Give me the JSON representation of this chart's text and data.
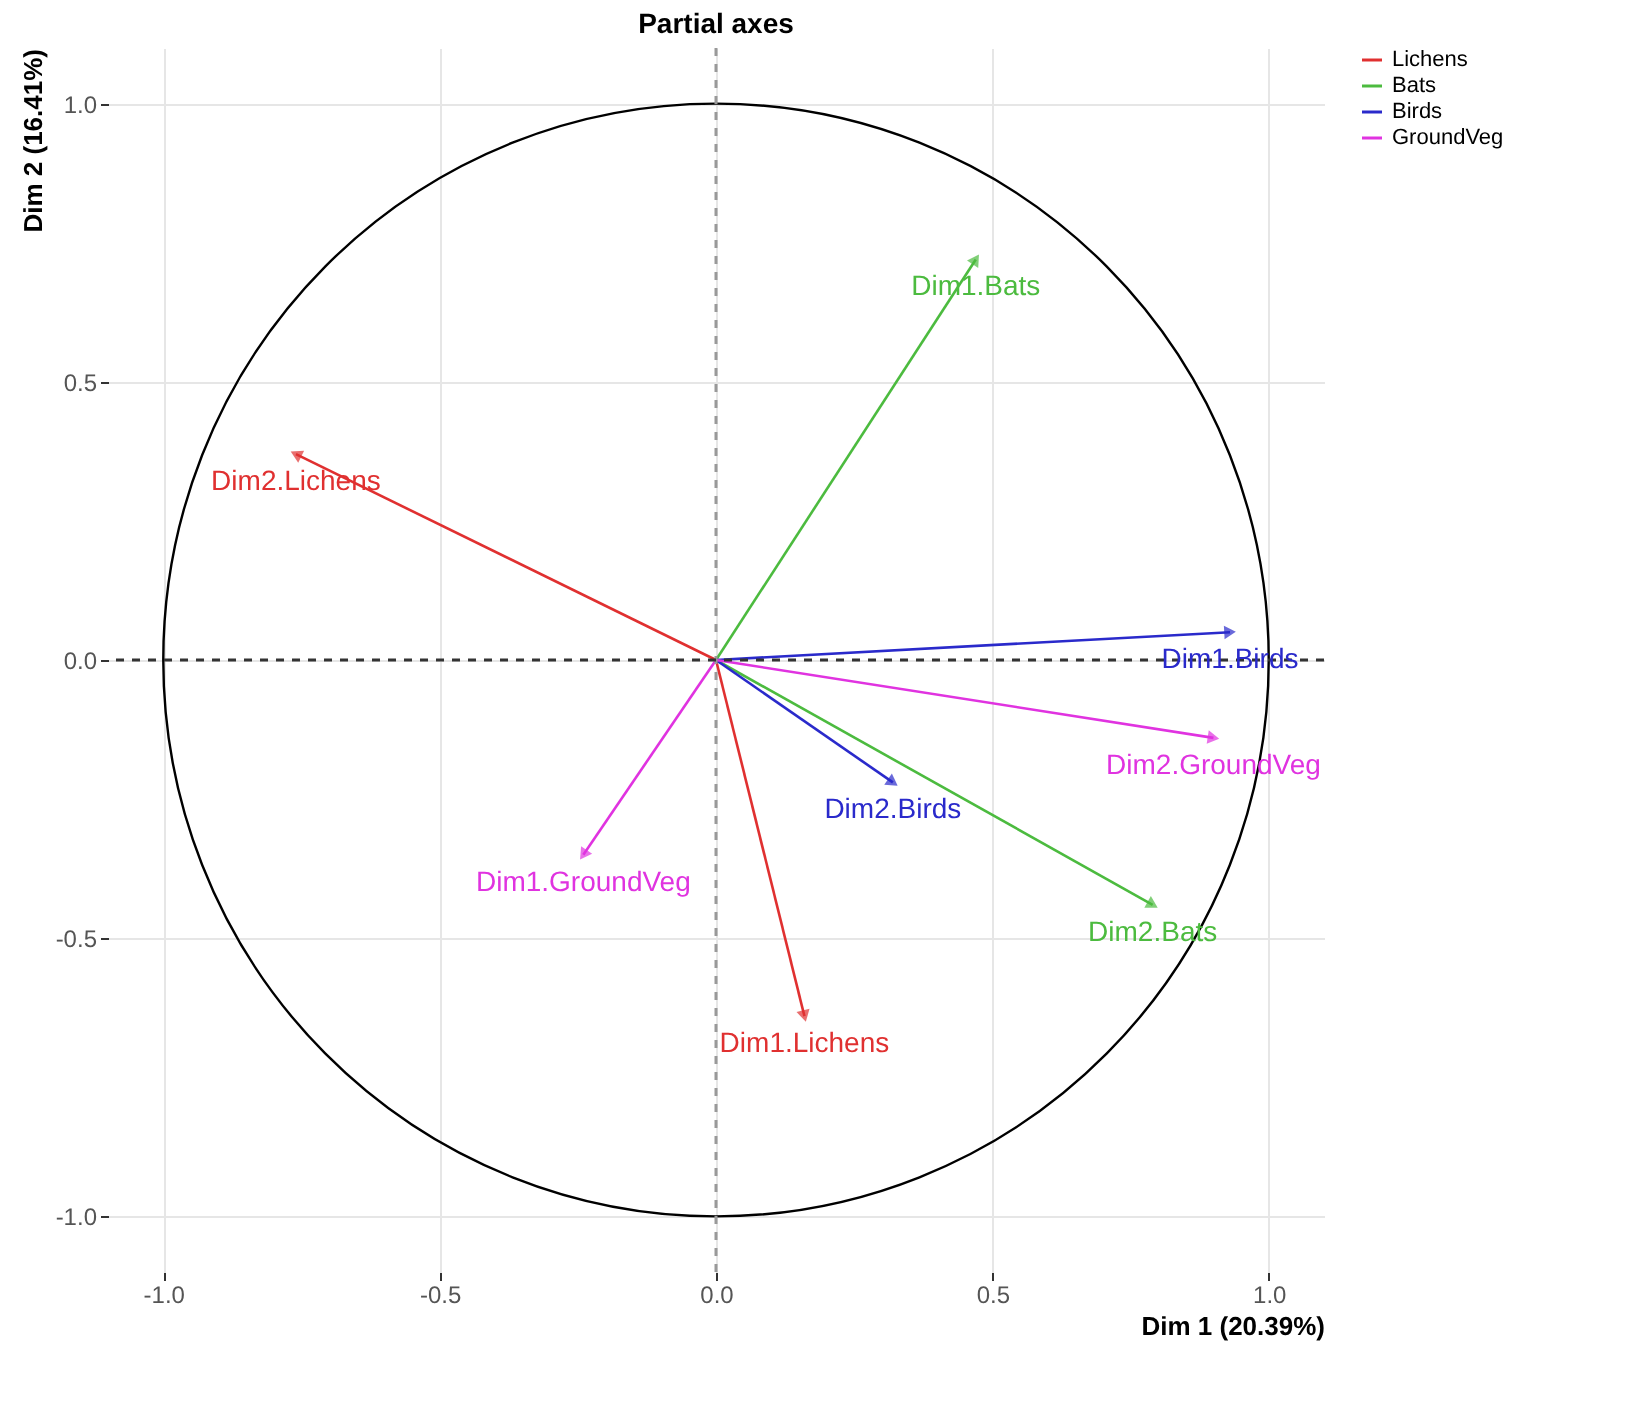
{
  "chart_data": {
    "type": "line",
    "title": "Partial axes",
    "xlabel": "Dim 1 (20.39%)",
    "ylabel": "Dim 2 (16.41%)",
    "xlim": [
      -1.1,
      1.1
    ],
    "ylim": [
      -1.1,
      1.1
    ],
    "xticks": [
      {
        "value": -1,
        "label": "-1.0"
      },
      {
        "value": -0.5,
        "label": "-0.5"
      },
      {
        "value": 0,
        "label": "0.0"
      },
      {
        "value": 0.5,
        "label": "0.5"
      },
      {
        "value": 1,
        "label": "1.0"
      }
    ],
    "yticks": [
      {
        "value": -1,
        "label": "-1.0"
      },
      {
        "value": -0.5,
        "label": "-0.5"
      },
      {
        "value": 0,
        "label": "0.0"
      },
      {
        "value": 0.5,
        "label": "0.5"
      },
      {
        "value": 1,
        "label": "1.0"
      }
    ],
    "grid": true,
    "legend": "right",
    "ref_lines": [
      {
        "axis": "x",
        "value": 0,
        "color": "#999999",
        "line_style": "dashed"
      },
      {
        "axis": "y",
        "value": 0,
        "color": "#333333",
        "line_style": "dashed"
      }
    ],
    "series": [
      {
        "name": "Lichens",
        "color": "#e03030",
        "x": [
          0,
          0.16,
          null,
          0,
          -0.76
        ],
        "values": [
          0,
          -0.64,
          null,
          0,
          0.37
        ],
        "value_labels": [
          null,
          "Dim1.Lichens",
          null,
          null,
          "Dim2.Lichens"
        ]
      },
      {
        "name": "Bats",
        "color": "#4cbb3f",
        "x": [
          0,
          0.47,
          null,
          0,
          0.79
        ],
        "values": [
          0,
          0.72,
          null,
          0,
          -0.44
        ],
        "value_labels": [
          null,
          "Dim1.Bats",
          null,
          null,
          "Dim2.Bats"
        ]
      },
      {
        "name": "Birds",
        "color": "#2a2acb",
        "x": [
          0,
          0.93,
          null,
          0,
          0.32
        ],
        "values": [
          0,
          0.05,
          null,
          0,
          -0.22
        ],
        "value_labels": [
          null,
          "Dim1.Birds",
          null,
          null,
          "Dim2.Birds"
        ]
      },
      {
        "name": "GroundVeg",
        "color": "#e033e0",
        "x": [
          0,
          -0.24,
          null,
          0,
          0.9
        ],
        "values": [
          0,
          -0.35,
          null,
          0,
          -0.14
        ],
        "value_labels": [
          null,
          "Dim1.GroundVeg",
          null,
          null,
          "Dim2.GroundVeg"
        ]
      }
    ]
  }
}
